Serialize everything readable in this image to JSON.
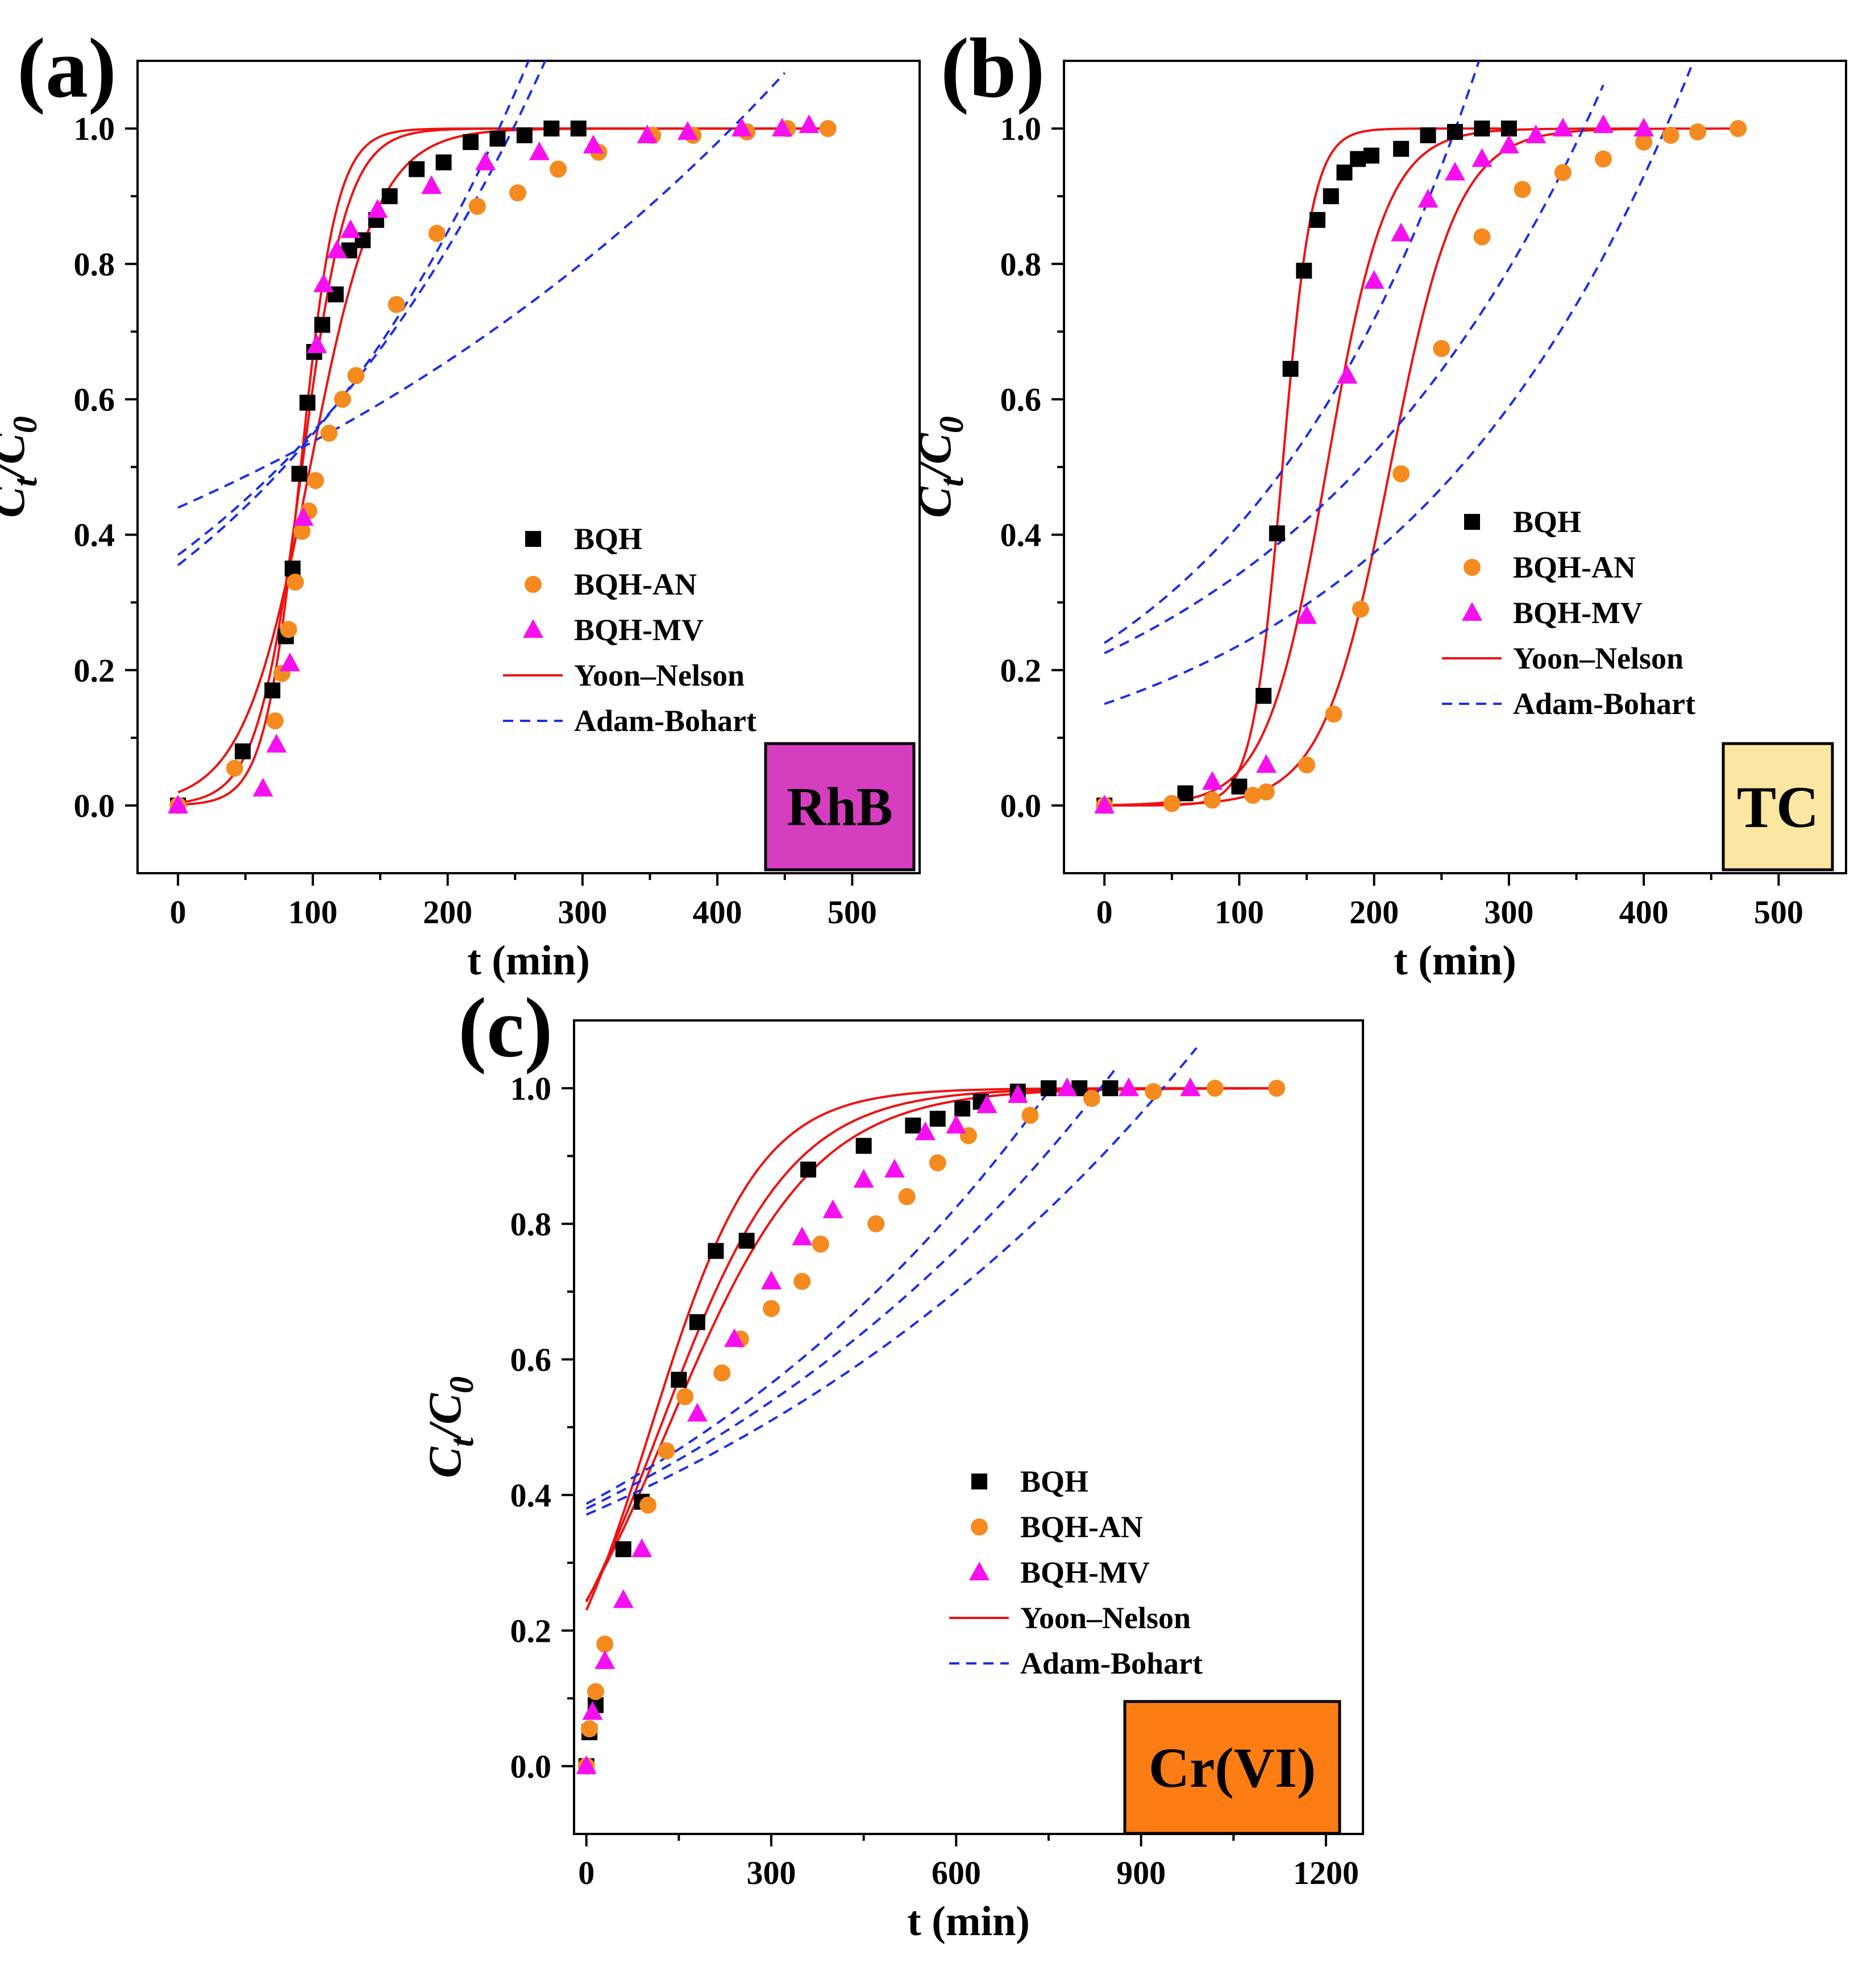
{
  "figure": {
    "ylabel_main": "C",
    "ylabel_sub_t": "t",
    "ylabel_slash": "/C",
    "ylabel_sub_0": "0"
  },
  "colors": {
    "BQH": "#000000",
    "BQH-AN": "#f58a1f",
    "BQH-MV": "#f70ff0",
    "yoon": "#ee1111",
    "adam": "#1a2ee6",
    "RhB_box": "#d63ec0",
    "TC_box": "#fbe6a2",
    "Cr_box": "#fb7d14"
  },
  "chart_data": [
    {
      "id": "a",
      "type": "scatter",
      "panel_label": "(a)",
      "title": "",
      "xlabel": "t (min)",
      "ylabel": "Ct/C0",
      "xlim": [
        -30,
        550
      ],
      "ylim": [
        -0.1,
        1.1
      ],
      "xticks": [
        0,
        100,
        200,
        300,
        400,
        500
      ],
      "xtick_labels": [
        "0",
        "100",
        "200",
        "300",
        "400",
        "500"
      ],
      "yticks": [
        0.0,
        0.2,
        0.4,
        0.6,
        0.8,
        1.0
      ],
      "ytick_labels": [
        "0.0",
        "0.2",
        "0.4",
        "0.6",
        "0.8",
        "1.0"
      ],
      "grid": false,
      "legend_position": "right",
      "label_box": {
        "text": "RhB",
        "color_key": "RhB_box"
      },
      "legend": [
        "BQH",
        "BQH-AN",
        "BQH-MV",
        "Yoon–Nelson",
        "Adam-Bohart"
      ],
      "series": [
        {
          "name": "BQH",
          "marker": "square",
          "color_key": "BQH",
          "x": [
            0,
            48,
            70,
            80,
            85,
            90,
            96,
            101,
            107,
            117,
            127,
            137,
            147,
            157,
            177,
            197,
            217,
            237,
            257,
            277,
            297
          ],
          "y": [
            0.0,
            0.08,
            0.17,
            0.25,
            0.35,
            0.49,
            0.595,
            0.67,
            0.71,
            0.755,
            0.82,
            0.835,
            0.865,
            0.9,
            0.94,
            0.95,
            0.98,
            0.985,
            0.99,
            1.0,
            1.0
          ]
        },
        {
          "name": "BQH-AN",
          "marker": "circle",
          "color_key": "BQH-AN",
          "x": [
            0,
            42,
            72,
            77,
            82,
            87,
            92,
            97,
            102,
            112,
            122,
            132,
            162,
            192,
            222,
            252,
            282,
            312,
            352,
            382,
            422,
            452,
            482
          ],
          "y": [
            0.0,
            0.055,
            0.125,
            0.195,
            0.26,
            0.33,
            0.405,
            0.435,
            0.48,
            0.55,
            0.6,
            0.635,
            0.74,
            0.845,
            0.885,
            0.905,
            0.94,
            0.965,
            0.99,
            0.99,
            0.995,
            1.0,
            1.0
          ]
        },
        {
          "name": "BQH-MV",
          "marker": "triangle",
          "color_key": "BQH-MV",
          "x": [
            0,
            63,
            73,
            83,
            93,
            103,
            108,
            118,
            128,
            148,
            188,
            228,
            268,
            308,
            348,
            378,
            418,
            448,
            468
          ],
          "y": [
            0.0,
            0.025,
            0.09,
            0.21,
            0.425,
            0.68,
            0.77,
            0.82,
            0.85,
            0.88,
            0.915,
            0.95,
            0.965,
            0.975,
            0.99,
            0.995,
            1.0,
            1.0,
            1.005
          ]
        },
        {
          "name": "Yoon–Nelson",
          "kind": "logistic",
          "line": "solid",
          "color_key": "yoon",
          "params": [
            {
              "k": 0.075,
              "tau": 91,
              "x0": 0,
              "x1": 480
            },
            {
              "k": 0.06,
              "tau": 92,
              "x0": 0,
              "x1": 480
            },
            {
              "k": 0.04,
              "tau": 98,
              "x0": 0,
              "x1": 480
            }
          ]
        },
        {
          "name": "Adam-Bohart",
          "kind": "exponential",
          "line": "dashed",
          "color_key": "adam",
          "params": [
            {
              "a": 0.355,
              "b": 0.00435,
              "x0": 0,
              "x1": 450
            },
            {
              "a": 0.37,
              "b": 0.004,
              "x0": 0,
              "x1": 450
            },
            {
              "a": 0.44,
              "b": 0.002,
              "x0": 0,
              "x1": 450
            }
          ]
        }
      ]
    },
    {
      "id": "b",
      "type": "scatter",
      "panel_label": "(b)",
      "title": "",
      "xlabel": "t (min)",
      "ylabel": "Ct/C0",
      "xlim": [
        -30,
        550
      ],
      "ylim": [
        -0.1,
        1.1
      ],
      "xticks": [
        0,
        100,
        200,
        300,
        400,
        500
      ],
      "xtick_labels": [
        "0",
        "100",
        "200",
        "300",
        "400",
        "500"
      ],
      "yticks": [
        0.0,
        0.2,
        0.4,
        0.6,
        0.8,
        1.0
      ],
      "ytick_labels": [
        "0.0",
        "0.2",
        "0.4",
        "0.6",
        "0.8",
        "1.0"
      ],
      "grid": false,
      "legend_position": "right",
      "label_box": {
        "text": "TC",
        "color_key": "TC_box"
      },
      "legend": [
        "BQH",
        "BQH-AN",
        "BQH-MV",
        "Yoon–Nelson",
        "Adam-Bohart"
      ],
      "series": [
        {
          "name": "BQH",
          "marker": "square",
          "color_key": "BQH",
          "x": [
            0,
            60,
            100,
            118,
            128,
            138,
            148,
            158,
            168,
            178,
            188,
            198,
            220,
            240,
            260,
            280,
            300
          ],
          "y": [
            0.0,
            0.018,
            0.028,
            0.162,
            0.402,
            0.645,
            0.79,
            0.865,
            0.9,
            0.935,
            0.955,
            0.96,
            0.97,
            0.99,
            0.995,
            1.0,
            1.0
          ]
        },
        {
          "name": "BQH-AN",
          "marker": "circle",
          "color_key": "BQH-AN",
          "x": [
            0,
            50,
            80,
            110,
            120,
            150,
            170,
            190,
            220,
            250,
            280,
            310,
            340,
            370,
            400,
            420,
            440,
            470
          ],
          "y": [
            0.0,
            0.003,
            0.008,
            0.015,
            0.02,
            0.06,
            0.135,
            0.29,
            0.49,
            0.675,
            0.84,
            0.91,
            0.935,
            0.955,
            0.98,
            0.99,
            0.995,
            1.0
          ]
        },
        {
          "name": "BQH-MV",
          "marker": "triangle",
          "color_key": "BQH-MV",
          "x": [
            0,
            80,
            120,
            150,
            180,
            200,
            220,
            240,
            260,
            280,
            300,
            320,
            340,
            370,
            400
          ],
          "y": [
            0.0,
            0.035,
            0.06,
            0.28,
            0.635,
            0.775,
            0.845,
            0.895,
            0.935,
            0.955,
            0.975,
            0.99,
            1.0,
            1.005,
            1.0
          ]
        },
        {
          "name": "Yoon–Nelson",
          "kind": "logistic",
          "line": "solid",
          "color_key": "yoon",
          "params": [
            {
              "k": 0.09,
              "tau": 132,
              "x0": 0,
              "x1": 300
            },
            {
              "k": 0.045,
              "tau": 165,
              "x0": 0,
              "x1": 400
            },
            {
              "k": 0.04,
              "tau": 212,
              "x0": 0,
              "x1": 470
            }
          ]
        },
        {
          "name": "Adam-Bohart",
          "kind": "exponential",
          "line": "dashed",
          "color_key": "adam",
          "params": [
            {
              "a": 0.24,
              "b": 0.00548,
              "x0": 0,
              "x1": 290
            },
            {
              "a": 0.225,
              "b": 0.0042,
              "x0": 0,
              "x1": 370
            },
            {
              "a": 0.15,
              "b": 0.00456,
              "x0": 0,
              "x1": 435
            }
          ]
        }
      ]
    },
    {
      "id": "c",
      "type": "scatter",
      "panel_label": "(c)",
      "title": "",
      "xlabel": "t (min)",
      "ylabel": "Ct/C0",
      "xlim": [
        -20,
        1260
      ],
      "ylim": [
        -0.1,
        1.1
      ],
      "xticks": [
        0,
        300,
        600,
        900,
        1200
      ],
      "xtick_labels": [
        "0",
        "300",
        "600",
        "900",
        "1200"
      ],
      "yticks": [
        0.0,
        0.2,
        0.4,
        0.6,
        0.8,
        1.0
      ],
      "ytick_labels": [
        "0.0",
        "0.2",
        "0.4",
        "0.6",
        "0.8",
        "1.0"
      ],
      "grid": false,
      "legend_position": "right",
      "label_box": {
        "text": "Cr(VI)",
        "color_key": "Cr_box"
      },
      "legend": [
        "BQH",
        "BQH-AN",
        "BQH-MV",
        "Yoon–Nelson",
        "Adam-Bohart"
      ],
      "series": [
        {
          "name": "BQH",
          "marker": "square",
          "color_key": "BQH",
          "x": [
            0,
            5,
            15,
            60,
            90,
            150,
            180,
            210,
            260,
            360,
            450,
            530,
            570,
            610,
            640,
            700,
            750,
            800,
            850
          ],
          "y": [
            0.0,
            0.05,
            0.09,
            0.32,
            0.39,
            0.57,
            0.655,
            0.76,
            0.775,
            0.88,
            0.915,
            0.945,
            0.955,
            0.97,
            0.98,
            0.995,
            1.0,
            1.0,
            1.0
          ]
        },
        {
          "name": "BQH-AN",
          "marker": "circle",
          "color_key": "BQH-AN",
          "x": [
            0,
            5,
            15,
            30,
            100,
            130,
            160,
            220,
            250,
            300,
            350,
            380,
            470,
            520,
            570,
            620,
            720,
            820,
            920,
            1020,
            1120
          ],
          "y": [
            0.0,
            0.055,
            0.11,
            0.18,
            0.385,
            0.465,
            0.545,
            0.58,
            0.63,
            0.675,
            0.715,
            0.77,
            0.8,
            0.84,
            0.89,
            0.93,
            0.96,
            0.985,
            0.995,
            1.0,
            1.0
          ]
        },
        {
          "name": "BQH-MV",
          "marker": "triangle",
          "color_key": "BQH-MV",
          "x": [
            0,
            10,
            30,
            60,
            90,
            180,
            240,
            300,
            350,
            400,
            450,
            500,
            550,
            600,
            650,
            700,
            780,
            880,
            980
          ],
          "y": [
            0.0,
            0.08,
            0.155,
            0.245,
            0.32,
            0.52,
            0.63,
            0.715,
            0.78,
            0.82,
            0.865,
            0.88,
            0.935,
            0.945,
            0.975,
            0.99,
            1.0,
            1.0,
            1.0
          ]
        },
        {
          "name": "Yoon–Nelson",
          "kind": "logistic",
          "line": "solid",
          "color_key": "yoon",
          "params": [
            {
              "k": 0.0115,
              "tau": 105,
              "x0": 0,
              "x1": 1120
            },
            {
              "k": 0.0095,
              "tau": 120,
              "x0": 0,
              "x1": 1120
            },
            {
              "k": 0.0085,
              "tau": 133,
              "x0": 0,
              "x1": 1120
            }
          ]
        },
        {
          "name": "Adam-Bohart",
          "kind": "exponential",
          "line": "dashed",
          "color_key": "adam",
          "params": [
            {
              "a": 0.387,
              "b": 0.00126,
              "x0": 0,
              "x1": 760
            },
            {
              "a": 0.38,
              "b": 0.00116,
              "x0": 0,
              "x1": 860
            },
            {
              "a": 0.371,
              "b": 0.00106,
              "x0": 0,
              "x1": 990
            }
          ]
        }
      ]
    }
  ]
}
